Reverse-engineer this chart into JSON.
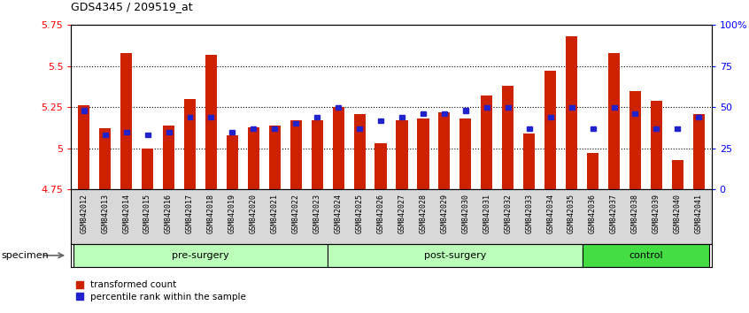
{
  "title": "GDS4345 / 209519_at",
  "samples": [
    "GSM842012",
    "GSM842013",
    "GSM842014",
    "GSM842015",
    "GSM842016",
    "GSM842017",
    "GSM842018",
    "GSM842019",
    "GSM842020",
    "GSM842021",
    "GSM842022",
    "GSM842023",
    "GSM842024",
    "GSM842025",
    "GSM842026",
    "GSM842027",
    "GSM842028",
    "GSM842029",
    "GSM842030",
    "GSM842031",
    "GSM842032",
    "GSM842033",
    "GSM842034",
    "GSM842035",
    "GSM842036",
    "GSM842037",
    "GSM842038",
    "GSM842039",
    "GSM842040",
    "GSM842041"
  ],
  "red_values": [
    5.26,
    5.12,
    5.58,
    5.0,
    5.14,
    5.3,
    5.57,
    5.08,
    5.13,
    5.14,
    5.17,
    5.17,
    5.25,
    5.21,
    5.03,
    5.17,
    5.18,
    5.22,
    5.18,
    5.32,
    5.38,
    5.09,
    5.47,
    5.68,
    4.97,
    5.58,
    5.35,
    5.29,
    4.93,
    5.21
  ],
  "blue_values": [
    0.48,
    0.33,
    0.35,
    0.33,
    0.35,
    0.44,
    0.44,
    0.35,
    0.37,
    0.37,
    0.4,
    0.44,
    0.5,
    0.37,
    0.42,
    0.44,
    0.46,
    0.46,
    0.48,
    0.5,
    0.5,
    0.37,
    0.44,
    0.5,
    0.37,
    0.5,
    0.46,
    0.37,
    0.37,
    0.44
  ],
  "groups": [
    {
      "label": "pre-surgery",
      "start": 0,
      "end": 12
    },
    {
      "label": "post-surgery",
      "start": 12,
      "end": 24
    },
    {
      "label": "control",
      "start": 24,
      "end": 30
    }
  ],
  "group_colors": [
    "#BBFFBB",
    "#BBFFBB",
    "#44DD44"
  ],
  "ylim_left": [
    4.75,
    5.75
  ],
  "ylim_right": [
    0.0,
    1.0
  ],
  "yticks_left": [
    4.75,
    5.0,
    5.25,
    5.5,
    5.75
  ],
  "ytick_labels_left": [
    "4.75",
    "5",
    "5.25",
    "5.5",
    "5.75"
  ],
  "yticks_right": [
    0.0,
    0.25,
    0.5,
    0.75,
    1.0
  ],
  "ytick_labels_right": [
    "0",
    "25",
    "50",
    "75",
    "100%"
  ],
  "bar_color": "#CC2200",
  "marker_color": "#2222CC",
  "legend_red": "transformed count",
  "legend_blue": "percentile rank within the sample",
  "specimen_label": "specimen"
}
